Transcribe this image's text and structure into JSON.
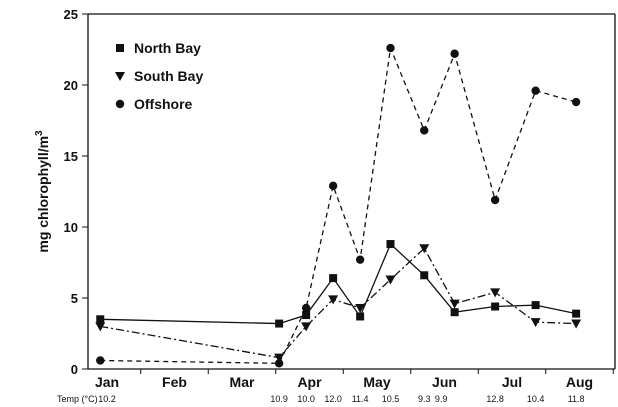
{
  "chart_data": {
    "type": "line",
    "title": "",
    "xlabel": "",
    "ylabel": "mg chlorophyll/m",
    "ylabel_superscript": "3",
    "ylim": [
      0,
      25
    ],
    "xlim_months": [
      0,
      7.6
    ],
    "yticks": [
      "0",
      "5",
      "10",
      "15",
      "20",
      "25"
    ],
    "months": [
      {
        "label": "Jan",
        "pos": 0
      },
      {
        "label": "Feb",
        "pos": 1
      },
      {
        "label": "Mar",
        "pos": 2
      },
      {
        "label": "Apr",
        "pos": 3
      },
      {
        "label": "May",
        "pos": 4
      },
      {
        "label": "Jun",
        "pos": 5
      },
      {
        "label": "Jul",
        "pos": 6
      },
      {
        "label": "Aug",
        "pos": 7
      }
    ],
    "legend_position": "top-left",
    "series": [
      {
        "name": "North Bay",
        "marker": "square",
        "line": "solid",
        "points": [
          [
            -0.1,
            3.5
          ],
          [
            2.55,
            3.2
          ],
          [
            2.95,
            3.8
          ],
          [
            3.35,
            6.4
          ],
          [
            3.75,
            3.7
          ],
          [
            4.2,
            8.8
          ],
          [
            4.7,
            6.6
          ],
          [
            5.15,
            4.0
          ],
          [
            5.75,
            4.4
          ],
          [
            6.35,
            4.5
          ],
          [
            6.95,
            3.9
          ]
        ]
      },
      {
        "name": "South Bay",
        "marker": "triangle-down",
        "line": "dashdot",
        "points": [
          [
            -0.1,
            3.0
          ],
          [
            2.55,
            0.8
          ],
          [
            2.95,
            3.0
          ],
          [
            3.35,
            4.9
          ],
          [
            3.75,
            4.3
          ],
          [
            4.2,
            6.3
          ],
          [
            4.7,
            8.5
          ],
          [
            5.15,
            4.6
          ],
          [
            5.75,
            5.4
          ],
          [
            6.35,
            3.3
          ],
          [
            6.95,
            3.2
          ]
        ]
      },
      {
        "name": "Offshore",
        "marker": "circle",
        "line": "dashed",
        "points": [
          [
            -0.1,
            0.6
          ],
          [
            2.55,
            0.4
          ],
          [
            2.95,
            4.3
          ],
          [
            3.35,
            12.9
          ],
          [
            3.75,
            7.7
          ],
          [
            4.2,
            22.6
          ],
          [
            4.7,
            16.8
          ],
          [
            5.15,
            22.2
          ],
          [
            5.75,
            11.9
          ],
          [
            6.35,
            19.6
          ],
          [
            6.95,
            18.8
          ]
        ]
      }
    ],
    "temp_label": "Temp (°C)",
    "temps": [
      {
        "pos": 0.0,
        "text": "10.2"
      },
      {
        "pos": 2.55,
        "text": "10.9"
      },
      {
        "pos": 2.95,
        "text": "10.0"
      },
      {
        "pos": 3.35,
        "text": "12.0"
      },
      {
        "pos": 3.75,
        "text": "11.4"
      },
      {
        "pos": 4.2,
        "text": "10.5"
      },
      {
        "pos": 4.7,
        "text": "9.3"
      },
      {
        "pos": 4.95,
        "text": "9.9"
      },
      {
        "pos": 5.75,
        "text": "12.8"
      },
      {
        "pos": 6.35,
        "text": "10.4"
      },
      {
        "pos": 6.95,
        "text": "11.8"
      }
    ]
  }
}
